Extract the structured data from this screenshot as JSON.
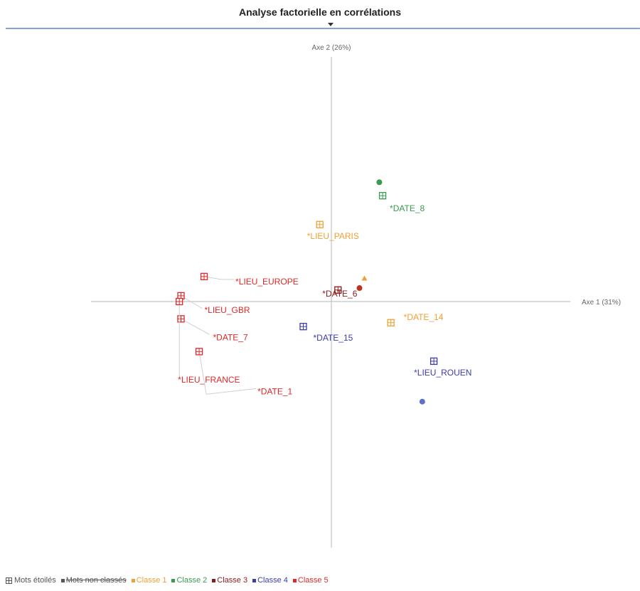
{
  "header": {
    "title": "Analyse factorielle en corrélations"
  },
  "chart_data": {
    "type": "scatter",
    "title": "Analyse factorielle en corrélations",
    "xlabel": "Axe 1 (31%)",
    "ylabel": "Axe 2 (26%)",
    "xlim": [
      -1.45,
      1.45
    ],
    "ylim": [
      -1.35,
      1.2
    ],
    "grid": false,
    "legend_position": "bottom-left",
    "series": [
      {
        "name": "Classe 1",
        "color": "#f0a030",
        "points": [
          {
            "label": "*LIEU_PARIS",
            "x": -0.07,
            "y": 0.4
          },
          {
            "label": "*DATE_14",
            "x": 0.36,
            "y": -0.11
          }
        ],
        "extra_points": [
          {
            "x": 0.2,
            "y": 0.12,
            "shape": "triangle"
          }
        ]
      },
      {
        "name": "Classe 2",
        "color": "#3a9a50",
        "points": [
          {
            "label": "*DATE_8",
            "x": 0.31,
            "y": 0.55
          }
        ],
        "extra_points": [
          {
            "x": 0.29,
            "y": 0.62,
            "shape": "dot"
          }
        ]
      },
      {
        "name": "Classe 3",
        "color": "#8b1a1a",
        "points": [
          {
            "label": "*DATE_6",
            "x": 0.04,
            "y": 0.06
          }
        ],
        "extra_points": [
          {
            "x": 0.17,
            "y": 0.07,
            "shape": "dot",
            "color": "#c03020"
          }
        ]
      },
      {
        "name": "Classe 4",
        "color": "#3c3caa",
        "points": [
          {
            "label": "*DATE_15",
            "x": -0.17,
            "y": -0.13
          },
          {
            "label": "*LIEU_ROUEN",
            "x": 0.62,
            "y": -0.31
          }
        ],
        "extra_points": [
          {
            "x": 0.55,
            "y": -0.52,
            "shape": "dot",
            "color": "#5f6fd0"
          }
        ]
      },
      {
        "name": "Classe 5",
        "color": "#e02828",
        "points": [
          {
            "label": "*LIEU_EUROPE",
            "x": -0.77,
            "y": 0.13
          },
          {
            "label": "*DATE_7",
            "x": -0.91,
            "y": -0.09
          },
          {
            "label": "*LIEU_GBR",
            "x": -0.91,
            "y": 0.03
          },
          {
            "label": "*LIEU_FRANCE",
            "x": -0.92,
            "y": 0.0
          },
          {
            "label": "*DATE_1",
            "x": -0.8,
            "y": -0.26
          }
        ]
      }
    ]
  },
  "legend": {
    "items": [
      {
        "label": "Mots étoilés",
        "kind": "star"
      },
      {
        "label": "Mots non classés",
        "kind": "struck",
        "color": "#555555"
      },
      {
        "label": "Classe 1",
        "color": "#f0a030"
      },
      {
        "label": "Classe 2",
        "color": "#3a9a50"
      },
      {
        "label": "Classe 3",
        "color": "#8b1a1a"
      },
      {
        "label": "Classe 4",
        "color": "#3c3caa"
      },
      {
        "label": "Classe 5",
        "color": "#e02828"
      }
    ]
  }
}
